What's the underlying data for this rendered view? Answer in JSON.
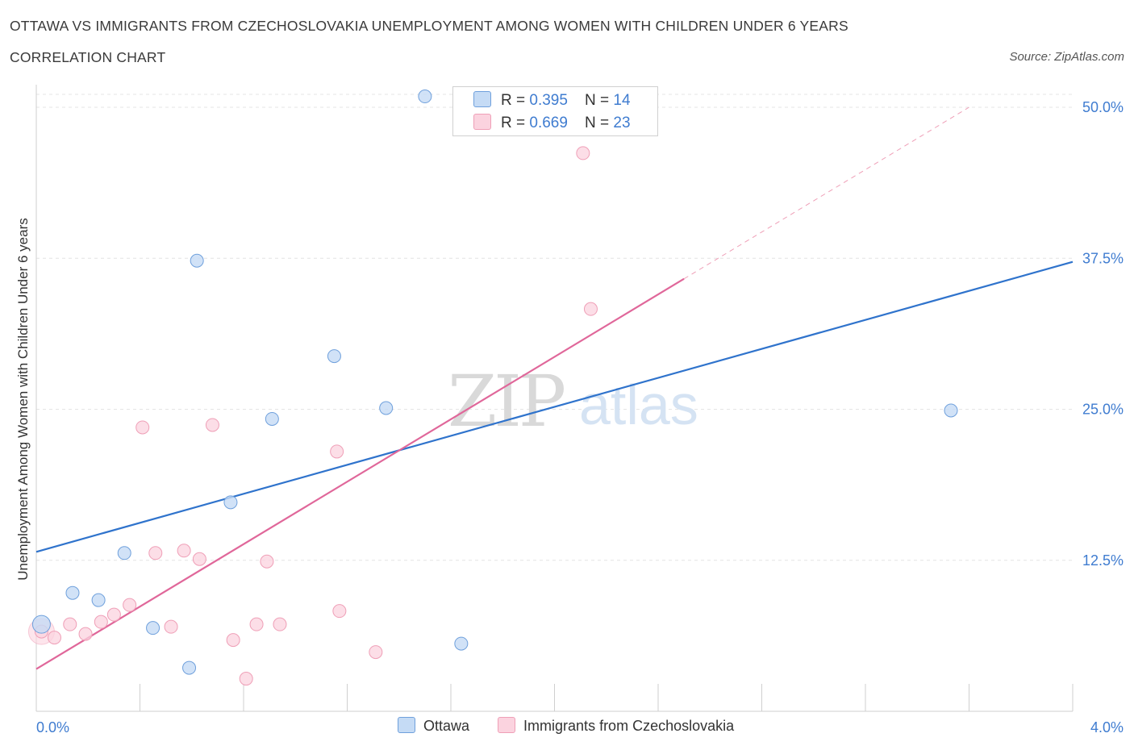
{
  "header": {
    "title": "OTTAWA VS IMMIGRANTS FROM CZECHOSLOVAKIA UNEMPLOYMENT AMONG WOMEN WITH CHILDREN UNDER 6 YEARS",
    "subtitle": "CORRELATION CHART",
    "source": "Source: ZipAtlas.com"
  },
  "watermark": {
    "zip": "ZIP",
    "atlas": "atlas"
  },
  "legend": {
    "r_prefix": "R = ",
    "n_prefix": "N = ",
    "rows": [
      {
        "r": "0.395",
        "n": "14"
      },
      {
        "r": "0.669",
        "n": "23"
      }
    ]
  },
  "colors": {
    "ottawa": "#6fa0dc",
    "ottawa_fill": "#c5dbf5",
    "ottawa_line": "#2f73cc",
    "czech": "#ef9fb7",
    "czech_fill": "#fbd3df",
    "czech_line": "#e0679a"
  },
  "chart_data": {
    "type": "scatter",
    "title": "OTTAWA VS IMMIGRANTS FROM CZECHOSLOVAKIA UNEMPLOYMENT AMONG WOMEN WITH CHILDREN UNDER 6 YEARS",
    "xlabel": "",
    "ylabel": "Unemployment Among Women with Children Under 6 years",
    "xlim": [
      0,
      4.0
    ],
    "ylim": [
      0,
      50.0
    ],
    "x_tick_labels": [
      "0.0%",
      "4.0%"
    ],
    "y_ticks": [
      12.5,
      25.0,
      37.5,
      50.0
    ],
    "y_tick_labels": [
      "12.5%",
      "25.0%",
      "37.5%",
      "50.0%"
    ],
    "grid": true,
    "legend_placement": "top-center and bottom",
    "series": [
      {
        "name": "Ottawa",
        "points": [
          [
            0.02,
            7.2
          ],
          [
            0.14,
            9.8
          ],
          [
            0.24,
            9.2
          ],
          [
            0.34,
            13.1
          ],
          [
            0.45,
            6.9
          ],
          [
            0.59,
            3.6
          ],
          [
            0.62,
            37.3
          ],
          [
            0.75,
            17.3
          ],
          [
            0.91,
            24.2
          ],
          [
            1.15,
            29.4
          ],
          [
            1.35,
            25.1
          ],
          [
            1.5,
            50.9
          ],
          [
            1.64,
            5.6
          ],
          [
            3.53,
            24.9
          ]
        ],
        "trend": {
          "x": [
            0.0,
            4.0
          ],
          "y": [
            13.2,
            37.2
          ]
        }
      },
      {
        "name": "Immigrants from Czechoslovakia",
        "points": [
          [
            0.02,
            6.6
          ],
          [
            0.07,
            6.1
          ],
          [
            0.13,
            7.2
          ],
          [
            0.19,
            6.4
          ],
          [
            0.25,
            7.4
          ],
          [
            0.3,
            8.0
          ],
          [
            0.36,
            8.8
          ],
          [
            0.41,
            23.5
          ],
          [
            0.46,
            13.1
          ],
          [
            0.52,
            7.0
          ],
          [
            0.57,
            13.3
          ],
          [
            0.63,
            12.6
          ],
          [
            0.68,
            23.7
          ],
          [
            0.76,
            5.9
          ],
          [
            0.81,
            2.7
          ],
          [
            0.85,
            7.2
          ],
          [
            0.89,
            12.4
          ],
          [
            0.94,
            7.2
          ],
          [
            1.16,
            21.5
          ],
          [
            1.17,
            8.3
          ],
          [
            1.31,
            4.9
          ],
          [
            2.14,
            33.3
          ],
          [
            2.11,
            46.2
          ]
        ],
        "trend": {
          "x": [
            0.0,
            2.5
          ],
          "y": [
            3.5,
            35.8
          ]
        },
        "trend_extension": {
          "x": [
            2.5,
            3.6
          ],
          "y": [
            35.8,
            50.0
          ]
        }
      }
    ]
  }
}
